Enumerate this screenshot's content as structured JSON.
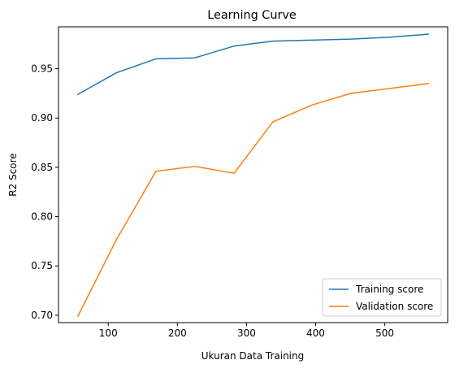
{
  "chart_data": {
    "type": "line",
    "title": "Learning Curve",
    "xlabel": "Ukuran Data Training",
    "ylabel": "R2 Score",
    "xlim": [
      28,
      591
    ],
    "ylim": [
      0.6925,
      0.9925
    ],
    "xticks": [
      100,
      200,
      300,
      400,
      500
    ],
    "yticks": [
      0.7,
      0.75,
      0.8,
      0.85,
      0.9,
      0.95
    ],
    "ytick_labels": [
      "0.70",
      "0.75",
      "0.80",
      "0.85",
      "0.90",
      "0.95"
    ],
    "grid": false,
    "legend_position": "lower-right",
    "x": [
      56,
      112,
      169,
      225,
      282,
      338,
      394,
      451,
      507,
      563
    ],
    "series": [
      {
        "name": "Training score",
        "color": "#1f77b4",
        "values": [
          0.924,
          0.946,
          0.96,
          0.961,
          0.973,
          0.978,
          0.979,
          0.98,
          0.982,
          0.985
        ]
      },
      {
        "name": "Validation score",
        "color": "#ff7f0e",
        "values": [
          0.699,
          0.777,
          0.846,
          0.851,
          0.844,
          0.896,
          0.913,
          0.925,
          0.93,
          0.935
        ]
      }
    ]
  }
}
